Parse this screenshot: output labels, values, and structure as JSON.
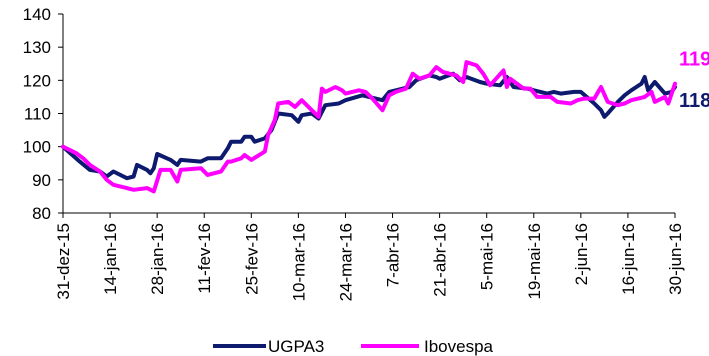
{
  "chart_data": {
    "type": "line",
    "title": "",
    "xlabel": "",
    "ylabel": "",
    "ylim": [
      80,
      140
    ],
    "yticks": [
      80,
      90,
      100,
      110,
      120,
      130,
      140
    ],
    "grid": false,
    "legend_position": "bottom",
    "x_tick_labels": [
      "31-dez-15",
      "14-jan-16",
      "28-jan-16",
      "11-fev-16",
      "25-fev-16",
      "10-mar-16",
      "24-mar-16",
      "7-abr-16",
      "21-abr-16",
      "5-mai-16",
      "19-mai-16",
      "2-jun-16",
      "16-jun-16",
      "30-jun-16"
    ],
    "series": [
      {
        "name": "UGPA3",
        "color": "#0d1a6e",
        "end_label": "118",
        "points": [
          [
            "31-dez-15",
            100
          ],
          [
            "5-jan-16",
            95.5
          ],
          [
            "8-jan-16",
            93
          ],
          [
            "11-jan-16",
            92.5
          ],
          [
            "13-jan-16",
            91
          ],
          [
            "15-jan-16",
            92.5
          ],
          [
            "19-jan-16",
            90.5
          ],
          [
            "21-jan-16",
            91
          ],
          [
            "22-jan-16",
            94.5
          ],
          [
            "25-jan-16",
            93
          ],
          [
            "26-jan-16",
            92
          ],
          [
            "27-jan-16",
            93.5
          ],
          [
            "28-jan-16",
            97.8
          ],
          [
            "1-fev-16",
            96
          ],
          [
            "3-fev-16",
            94.5
          ],
          [
            "4-fev-16",
            96
          ],
          [
            "10-fev-16",
            95.5
          ],
          [
            "12-fev-16",
            96.5
          ],
          [
            "16-fev-16",
            96.5
          ],
          [
            "18-fev-16",
            99.5
          ],
          [
            "19-fev-16",
            101.5
          ],
          [
            "22-fev-16",
            101.5
          ],
          [
            "23-fev-16",
            103
          ],
          [
            "25-fev-16",
            103
          ],
          [
            "26-fev-16",
            101.5
          ],
          [
            "29-fev-16",
            102.5
          ],
          [
            "2-mar-16",
            105
          ],
          [
            "4-mar-16",
            110
          ],
          [
            "8-mar-16",
            109.5
          ],
          [
            "10-mar-16",
            107.5
          ],
          [
            "11-mar-16",
            109.5
          ],
          [
            "14-mar-16",
            110
          ],
          [
            "16-mar-16",
            108.5
          ],
          [
            "18-mar-16",
            112.5
          ],
          [
            "22-mar-16",
            113
          ],
          [
            "24-mar-16",
            114
          ],
          [
            "29-mar-16",
            115.5
          ],
          [
            "31-mar-16",
            115
          ],
          [
            "4-abr-16",
            114
          ],
          [
            "6-abr-16",
            116.5
          ],
          [
            "8-abr-16",
            117
          ],
          [
            "12-abr-16",
            118
          ],
          [
            "14-abr-16",
            120
          ],
          [
            "18-abr-16",
            121.5
          ],
          [
            "20-abr-16",
            121
          ],
          [
            "21-abr-16",
            120.5
          ],
          [
            "25-abr-16",
            122
          ],
          [
            "27-abr-16",
            120
          ],
          [
            "29-abr-16",
            121
          ],
          [
            "3-mai-16",
            119.5
          ],
          [
            "5-mai-16",
            119
          ],
          [
            "9-mai-16",
            118.5
          ],
          [
            "11-mai-16",
            121
          ],
          [
            "13-mai-16",
            118
          ],
          [
            "17-mai-16",
            117.5
          ],
          [
            "19-mai-16",
            117
          ],
          [
            "23-mai-16",
            116
          ],
          [
            "25-mai-16",
            116.5
          ],
          [
            "27-mai-16",
            116
          ],
          [
            "31-mai-16",
            116.5
          ],
          [
            "2-jun-16",
            116.5
          ],
          [
            "6-jun-16",
            113
          ],
          [
            "8-jun-16",
            111
          ],
          [
            "9-jun-16",
            109
          ],
          [
            "10-jun-16",
            110
          ],
          [
            "13-jun-16",
            113.5
          ],
          [
            "15-jun-16",
            115.5
          ],
          [
            "17-jun-16",
            117
          ],
          [
            "20-jun-16",
            119
          ],
          [
            "21-jun-16",
            121
          ],
          [
            "22-jun-16",
            117
          ],
          [
            "24-jun-16",
            119.5
          ],
          [
            "27-jun-16",
            116
          ],
          [
            "29-jun-16",
            116.5
          ],
          [
            "30-jun-16",
            118
          ]
        ]
      },
      {
        "name": "Ibovespa",
        "color": "#ff00ff",
        "end_label": "119",
        "points": [
          [
            "31-dez-15",
            100
          ],
          [
            "4-jan-16",
            98
          ],
          [
            "6-jan-16",
            96.5
          ],
          [
            "8-jan-16",
            94.5
          ],
          [
            "11-jan-16",
            92.5
          ],
          [
            "13-jan-16",
            90
          ],
          [
            "15-jan-16",
            88.5
          ],
          [
            "19-jan-16",
            87.5
          ],
          [
            "21-jan-16",
            87
          ],
          [
            "25-jan-16",
            87.5
          ],
          [
            "27-jan-16",
            86.5
          ],
          [
            "29-jan-16",
            93
          ],
          [
            "1-fev-16",
            93
          ],
          [
            "3-fev-16",
            89.5
          ],
          [
            "4-fev-16",
            93
          ],
          [
            "10-fev-16",
            93.5
          ],
          [
            "12-fev-16",
            91.5
          ],
          [
            "16-fev-16",
            92.5
          ],
          [
            "18-fev-16",
            95.5
          ],
          [
            "19-fev-16",
            95.5
          ],
          [
            "22-fev-16",
            96.5
          ],
          [
            "23-fev-16",
            97.5
          ],
          [
            "25-fev-16",
            96
          ],
          [
            "29-fev-16",
            98.5
          ],
          [
            "1-mar-16",
            103.5
          ],
          [
            "3-mar-16",
            108
          ],
          [
            "4-mar-16",
            113
          ],
          [
            "7-mar-16",
            113.5
          ],
          [
            "9-mar-16",
            112
          ],
          [
            "11-mar-16",
            114
          ],
          [
            "14-mar-16",
            111
          ],
          [
            "16-mar-16",
            109
          ],
          [
            "17-mar-16",
            117.5
          ],
          [
            "18-mar-16",
            116.5
          ],
          [
            "21-mar-16",
            118
          ],
          [
            "23-mar-16",
            117
          ],
          [
            "24-mar-16",
            116
          ],
          [
            "28-mar-16",
            117
          ],
          [
            "30-mar-16",
            116.5
          ],
          [
            "1-abr-16",
            114.5
          ],
          [
            "4-abr-16",
            111
          ],
          [
            "6-abr-16",
            115.5
          ],
          [
            "8-abr-16",
            116.5
          ],
          [
            "11-abr-16",
            117.5
          ],
          [
            "13-abr-16",
            122
          ],
          [
            "15-abr-16",
            120.5
          ],
          [
            "18-abr-16",
            121.5
          ],
          [
            "20-abr-16",
            124
          ],
          [
            "22-abr-16",
            122.5
          ],
          [
            "26-abr-16",
            121.5
          ],
          [
            "28-abr-16",
            119.5
          ],
          [
            "29-abr-16",
            125.5
          ],
          [
            "2-mai-16",
            124.5
          ],
          [
            "4-mai-16",
            122
          ],
          [
            "6-mai-16",
            118.5
          ],
          [
            "10-mai-16",
            123
          ],
          [
            "11-mai-16",
            118
          ],
          [
            "12-mai-16",
            120.5
          ],
          [
            "16-mai-16",
            117.5
          ],
          [
            "18-mai-16",
            117.5
          ],
          [
            "20-mai-16",
            115
          ],
          [
            "24-mai-16",
            115
          ],
          [
            "26-mai-16",
            113.5
          ],
          [
            "30-mai-16",
            113
          ],
          [
            "1-jun-16",
            114
          ],
          [
            "3-jun-16",
            114.5
          ],
          [
            "6-jun-16",
            114.5
          ],
          [
            "8-jun-16",
            118
          ],
          [
            "10-jun-16",
            113.5
          ],
          [
            "13-jun-16",
            112.5
          ],
          [
            "15-jun-16",
            113
          ],
          [
            "17-jun-16",
            114
          ],
          [
            "21-jun-16",
            115
          ],
          [
            "23-jun-16",
            116.5
          ],
          [
            "24-jun-16",
            113.5
          ],
          [
            "27-jun-16",
            115
          ],
          [
            "28-jun-16",
            113
          ],
          [
            "30-jun-16",
            119
          ]
        ]
      }
    ]
  }
}
